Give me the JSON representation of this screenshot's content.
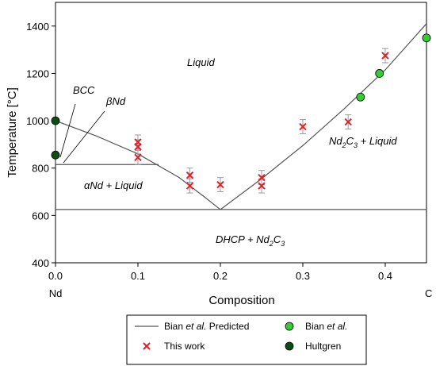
{
  "chart_data": {
    "type": "scatter",
    "xlabel": "Composition",
    "ylabel": "Temperature [°C]",
    "xlim": [
      0,
      0.45
    ],
    "ylim": [
      400,
      1500
    ],
    "x_ticks": [
      0.0,
      0.1,
      0.2,
      0.3,
      0.4
    ],
    "x_tick_labels": [
      "0.0",
      "0.1",
      "0.2",
      "0.3",
      "0.4"
    ],
    "y_ticks": [
      400,
      600,
      800,
      1000,
      1200,
      1400
    ],
    "y_tick_labels": [
      "400",
      "600",
      "800",
      "1000",
      "1200",
      "1400"
    ],
    "x_end_labels": {
      "left": "Nd",
      "right": "C"
    },
    "grid": false,
    "legend_position": "bottom",
    "phase_labels": {
      "liquid": "Liquid",
      "bcc": "BCC",
      "beta_prefix": "β",
      "beta_main": "Nd",
      "alpha_prefix": "α",
      "alpha_main": "Nd + Liquid",
      "nd2c3_liquid_a": "Nd",
      "nd2c3_liquid_sub2": "2",
      "nd2c3_liquid_b": "C",
      "nd2c3_liquid_sub3": "3",
      "nd2c3_liquid_c": " + Liquid",
      "dhcp_a": "DHCP + Nd",
      "dhcp_sub2": "2",
      "dhcp_b": "C",
      "dhcp_sub3": "3"
    },
    "series": [
      {
        "name": "Bian et al. Predicted",
        "kind": "line",
        "color": "#555555",
        "segments": [
          [
            [
              0.0,
              1000
            ],
            [
              0.05,
              935
            ],
            [
              0.1,
              860
            ],
            [
              0.15,
              760
            ],
            [
              0.18,
              680
            ],
            [
              0.2,
              625
            ]
          ],
          [
            [
              0.2,
              625
            ],
            [
              0.25,
              755
            ],
            [
              0.3,
              895
            ],
            [
              0.35,
              1050
            ],
            [
              0.4,
              1215
            ],
            [
              0.45,
              1410
            ]
          ],
          [
            [
              0.0,
              625
            ],
            [
              0.45,
              625
            ]
          ],
          [
            [
              0.0,
              815
            ],
            [
              0.125,
              815
            ]
          ],
          [
            [
              0.0,
              1000
            ],
            [
              0.0,
              815
            ]
          ]
        ]
      },
      {
        "name": "This work",
        "kind": "x-marker",
        "color": "#e0202a",
        "points": [
          {
            "x": 0.1,
            "y": 910,
            "err": 30
          },
          {
            "x": 0.1,
            "y": 890,
            "err": 30
          },
          {
            "x": 0.1,
            "y": 845,
            "err": 30
          },
          {
            "x": 0.163,
            "y": 770,
            "err": 30
          },
          {
            "x": 0.163,
            "y": 725,
            "err": 30
          },
          {
            "x": 0.2,
            "y": 730,
            "err": 30
          },
          {
            "x": 0.25,
            "y": 760,
            "err": 30
          },
          {
            "x": 0.25,
            "y": 725,
            "err": 30
          },
          {
            "x": 0.3,
            "y": 975,
            "err": 30
          },
          {
            "x": 0.355,
            "y": 995,
            "err": 30
          },
          {
            "x": 0.4,
            "y": 1275,
            "err": 30
          }
        ]
      },
      {
        "name": "Bian et al.",
        "kind": "circle",
        "color": "#33cc33",
        "points": [
          {
            "x": 0.37,
            "y": 1100
          },
          {
            "x": 0.393,
            "y": 1200
          },
          {
            "x": 0.45,
            "y": 1350
          }
        ]
      },
      {
        "name": "Hultgren",
        "kind": "circle",
        "color": "#0b4d12",
        "points": [
          {
            "x": 0.0,
            "y": 1000
          },
          {
            "x": 0.0,
            "y": 855
          }
        ]
      }
    ],
    "legend": {
      "predicted": "Bian et al. Predicted",
      "predicted_a": "Bian ",
      "predicted_b": "et al.",
      "predicted_c": " Predicted",
      "this_work": "This work",
      "bian_a": "Bian ",
      "bian_b": "et al.",
      "hultgren": "Hultgren"
    }
  }
}
